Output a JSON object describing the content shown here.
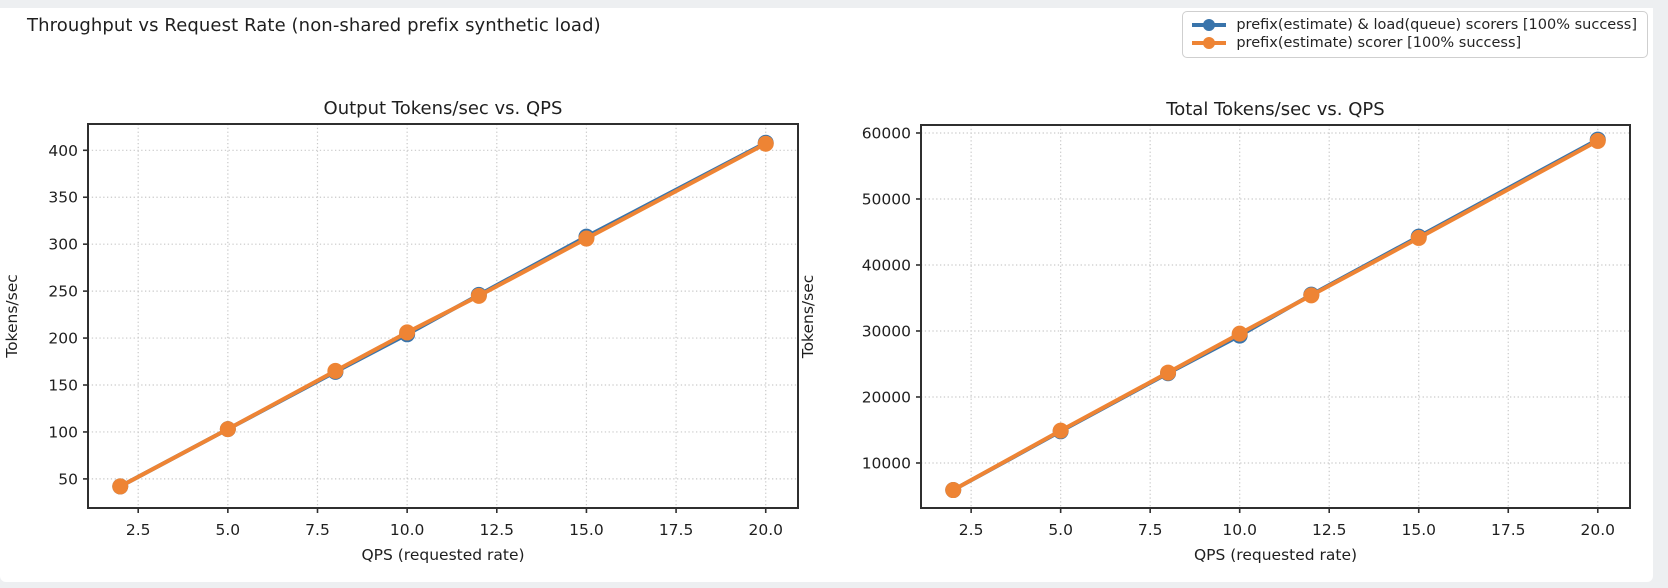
{
  "page": {
    "background_color": "#edeff1"
  },
  "figure": {
    "suptitle": "Throughput vs Request Rate (non-shared prefix synthetic load)",
    "background_color": "#ffffff"
  },
  "legend": {
    "position": "top-right",
    "items": [
      {
        "label": "prefix(estimate) & load(queue) scorers [100% success]",
        "color": "#3974ab",
        "marker": "circle"
      },
      {
        "label": "prefix(estimate) scorer [100% success]",
        "color": "#ee8434",
        "marker": "circle"
      }
    ]
  },
  "style": {
    "grid_color": "#c9c9c9",
    "spine_color": "#2f2f2f",
    "text_color": "#1f1f1f",
    "line_width": 4,
    "marker_radius": 8
  },
  "chart_data": [
    {
      "type": "line",
      "title": "Output Tokens/sec vs. QPS",
      "xlabel": "QPS (requested rate)",
      "ylabel": "Tokens/sec",
      "x": [
        2,
        5,
        8,
        10,
        12,
        15,
        20
      ],
      "series": [
        {
          "name": "prefix(estimate) & load(queue) scorers [100% success]",
          "color": "#3974ab",
          "values": [
            42,
            103,
            164,
            204,
            246,
            308,
            408
          ]
        },
        {
          "name": "prefix(estimate) scorer [100% success]",
          "color": "#ee8434",
          "values": [
            42,
            103,
            165,
            206,
            245,
            306,
            407
          ]
        }
      ],
      "xlim": [
        1.1,
        20.9
      ],
      "ylim": [
        19,
        428
      ],
      "xticks": [
        2.5,
        5,
        7.5,
        10,
        12.5,
        15,
        17.5,
        20
      ],
      "xtick_labels": [
        "2.5",
        "5.0",
        "7.5",
        "10.0",
        "12.5",
        "15.0",
        "17.5",
        "20.0"
      ],
      "yticks": [
        50,
        100,
        150,
        200,
        250,
        300,
        350,
        400
      ],
      "ytick_labels": [
        "50",
        "100",
        "150",
        "200",
        "250",
        "300",
        "350",
        "400"
      ],
      "grid": true,
      "grid_style": "dotted",
      "legend_position": "figure-top-right"
    },
    {
      "type": "line",
      "title": "Total Tokens/sec vs. QPS",
      "xlabel": "QPS (requested rate)",
      "ylabel": "Tokens/sec",
      "x": [
        2,
        5,
        8,
        10,
        12,
        15,
        20
      ],
      "series": [
        {
          "name": "prefix(estimate) & load(queue) scorers [100% success]",
          "color": "#3974ab",
          "values": [
            5900,
            14800,
            23600,
            29300,
            35500,
            44300,
            59000
          ]
        },
        {
          "name": "prefix(estimate) scorer [100% success]",
          "color": "#ee8434",
          "values": [
            5900,
            14900,
            23700,
            29600,
            35400,
            44100,
            58800
          ]
        }
      ],
      "xlim": [
        1.1,
        20.9
      ],
      "ylim": [
        3180,
        61210
      ],
      "xticks": [
        2.5,
        5,
        7.5,
        10,
        12.5,
        15,
        17.5,
        20
      ],
      "xtick_labels": [
        "2.5",
        "5.0",
        "7.5",
        "10.0",
        "12.5",
        "15.0",
        "17.5",
        "20.0"
      ],
      "yticks": [
        10000,
        20000,
        30000,
        40000,
        50000,
        60000
      ],
      "ytick_labels": [
        "10000",
        "20000",
        "30000",
        "40000",
        "50000",
        "60000"
      ],
      "grid": true,
      "grid_style": "dotted",
      "legend_position": "figure-top-right"
    }
  ]
}
